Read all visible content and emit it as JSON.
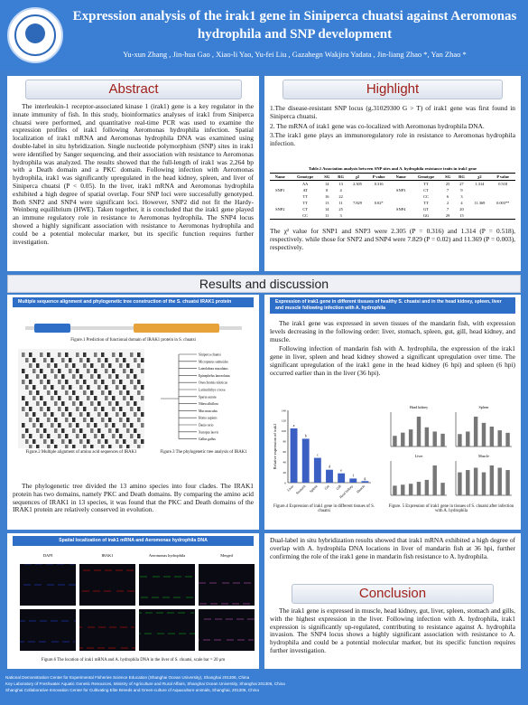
{
  "header": {
    "title": "Expression analysis of the irak1 gene in Siniperca chuatsi against Aeromonas hydrophila and SNP development",
    "authors": "Yu-xun Zhang , Jin-hua Gao , Xiao-li Yao, Yu-fei Liu , Gazahegn Wakjira Yadata , Jin-liang Zhao *, Yan Zhao *",
    "logo_text": "SHANGHAI OCEAN UNIVERSITY"
  },
  "abstract": {
    "heading": "Abstract",
    "text": "The interleukin-1 receptor-associated kinase 1 (irak1) gene is a key regulator in the innate immunity of fish. In this study, bioinformatics analyses of irak1 from Siniperca chuatsi were performed, and quantitative real-time PCR was used to examine the expression profiles of irak1 following Aeromonas hydrophila infection. Spatial localization of irak1 mRNA and Aeromonas hydrophila DNA was examined using double-label in situ hybridization. Single nucleotide polymorphism (SNP) sites in irak1 were identified by Sanger sequencing, and their association with resistance to Aeromonas hydrophila was analyzed. The results showed that the full-length of irak1 was 2,264 bp with a Death domain and a PKC domain. Following infection with Aeromonas hydrophila, irak1 was significantly upregulated in the head kidney, spleen, and liver of Siniperca chuatsi (P < 0.05). In the liver, irak1 mRNA and Aeromonas hydrophila exhibited a high degree of spatial overlap. Four SNP loci were successfully genotyped. Both SNP2 and SNP4 were significant loci. However, SNP2 did not fit the Hardy-Weinberg equilibrium (HWE). Taken together, it is concluded that the irak1 gene played an immune regulatory role in resistance to Aeromonas hydrophila. The SNP4 locus showed a highly significant association with resistance to Aeromonas hydrophila and could be a potential molecular marker, but its specific function requires further investigation."
  },
  "highlight": {
    "heading": "Highlight",
    "points": [
      "1.The disease-resistant SNP locus (g.31029300 G > T) of irak1 gene was first found in Siniperca chuatsi.",
      "2. The mRNA of irak1 gene was co-localized with Aeromonas hydrophila DNA.",
      "3.The irak1 gene plays an immunoregulatory role in resistance to Aeromonas hydrophila infection."
    ],
    "table_title": "Table.1 Association analysis between SNP sites and A. hydrophila resistance traits in irak1 gene",
    "table_headers": [
      "Name",
      "Genotype",
      "SG",
      "RG",
      "χ2",
      "P value",
      "Name",
      "Genotype",
      "SG",
      "RG",
      "χ2",
      "P value"
    ],
    "table_rows": [
      [
        "",
        "AA",
        "14",
        "13",
        "2.305",
        "0.316",
        "",
        "TT",
        "25",
        "27",
        "1.314",
        "0.518"
      ],
      [
        "SNP1",
        "AT",
        "8",
        "4",
        "",
        "",
        "SNP3",
        "CT",
        "7",
        "9",
        "",
        ""
      ],
      [
        "",
        "TT",
        "16",
        "22",
        "",
        "",
        "",
        "CC",
        "6",
        "3",
        "",
        ""
      ],
      [
        "",
        "TT",
        "13",
        "11",
        "7.829",
        "0.02*",
        "",
        "TT",
        "2",
        "4",
        "11.369",
        "0.003**"
      ],
      [
        "SNP2",
        "CT",
        "14",
        "25",
        "",
        "",
        "SNP4",
        "GT",
        "7",
        "20",
        "",
        ""
      ],
      [
        "",
        "CC",
        "11",
        "3",
        "",
        "",
        "",
        "GG",
        "29",
        "15",
        "",
        ""
      ]
    ],
    "summary": "The χ² value for SNP1 and SNP3 were 2.305 (P = 0.316) and 1.314 (P = 0.518), respectively. while those for SNP2 and SNP4 were 7.829 (P = 0.02) and 11.369 (P = 0.003), respectively."
  },
  "results": {
    "heading": "Results and discussion",
    "left_head": "Multiple sequence alignment and phylogenetic tree construction of the S. chuatsi IRAK1 protein",
    "fig1_caption": "Figure.1 Prediction of functional domain of IRAK1 protein in S. chuatsi",
    "fig2_caption": "Figure.2 Multiple alignment of amino acid sequences of IRAK1",
    "fig3_caption": "Figure.3 The phylogenetic tree analysis of IRAK1",
    "tree_species": [
      "Siniperca chuatsi",
      "Micropterus salmoides",
      "Lateolabrax maculatus",
      "Epinephelus lanceolatus",
      "Oreochromis niloticus",
      "Larimichthys crocea",
      "Sparus aurata",
      "Nibea albiflora",
      "Mus musculus",
      "Homo sapiens",
      "Danio rerio",
      "Xenopus laevis",
      "Gallus gallus"
    ],
    "left_text": "The phylogenetic tree divided the 13 amino species into four clades. The IRAK1 protein has two domains, namely PKC and Death domains. By comparing the amino acid sequences of IRAK1 in 13 species, it was found that the PKC and Death domains of the IRAK1 protein are relatively conserved in evolution.",
    "right_head": "Expression of irak1 gene in different tissues of healthy S. chuatsi and in the head kidney, spleen, liver and muscle following infection with A. hydrophila",
    "right_text1": "The irak1 gene was expressed in seven tissues of the mandarin fish, with expression levels decreasing in the following order: liver, stomach, spleen, gut, gill, head kidney, and muscle.",
    "right_text2": "Following infection of mandarin fish with A. hydrophila, the expression of the irak1 gene in liver, spleen and head kidney showed a significant upregulation over time. The significant upregulation of the irak1 gene in the head kidney (6 hpi) and spleen (6 hpi) occurred earlier than in the liver (36 hpi).",
    "fig4_caption": "Figure.4 Expression of irak1 gene in different tissues of S. chuatsi",
    "fig5_caption": "Figure. 5 Expression of irak1 gene in tissues of S. chuatsi after infection with A. hydrophila",
    "spatial_head": "Spatial localization of irak1 mRNA and Aeromonas hydrophila DNA",
    "fish_cols": [
      "DAPI",
      "IRAK1",
      "Aeromonas hydrophila",
      "Merged"
    ],
    "fig6_caption": "Figure.6 The location of irak1 mRNA and A. hydrophila DNA in the liver of S. chuatsi, scale bar = 20 μm",
    "spatial_text": "Dual-label in situ hybridization results showed that irak1 mRNA exhibited a high degree of overlap with A. hydrophila DNA locations in liver of mandarin fish at 36 hpi, further confirming the role of the irak1 gene in mandarin fish resistance to A. hydrophila."
  },
  "conclusion": {
    "heading": "Conclusion",
    "text": "The irak1 gene is expressed in muscle, head kidney, gut, liver, spleen, stomach and gills, with the highest expression in the liver. Following infection with A. hydrophila, irak1 expression is significantly up-regulated, contributing to resistance against A. hydrophila invasion. The SNP4 locus shows a highly significant association with resistance to A. hydrophila and could be a potential molecular marker, but its specific function requires further investigation."
  },
  "chart_data": [
    {
      "type": "bar",
      "title": "",
      "xlabel": "",
      "ylabel": "Relative expression of irak1",
      "categories": [
        "Liver",
        "Stomach",
        "Spleen",
        "Gut",
        "Gill",
        "Head kidney",
        "Muscle"
      ],
      "values": [
        105,
        85,
        48,
        25,
        18,
        8,
        3
      ],
      "ylim": [
        0,
        140
      ],
      "letters": [
        "a",
        "b",
        "c",
        "d",
        "e",
        "f",
        "g"
      ]
    }
  ],
  "mini_charts": [
    {
      "title": "Head kidney",
      "values": [
        1,
        1.3,
        1.6,
        2.8,
        1.8,
        1.4,
        1.2
      ]
    },
    {
      "title": "Spleen",
      "values": [
        1,
        1.2,
        2.4,
        1.9,
        1.6,
        1.3,
        1.1
      ]
    },
    {
      "title": "Liver",
      "values": [
        1,
        1.1,
        1.2,
        1.4,
        1.6,
        3.1,
        1.3
      ]
    },
    {
      "title": "Muscle",
      "values": [
        1,
        1.1,
        1.2,
        1.0,
        1.3,
        1.2,
        1.1
      ]
    }
  ],
  "footer": {
    "lines": [
      "National Demonstration Center for Experimental Fisheries Science Education (Shanghai Ocean University), Shanghai 201306, China",
      "Key Laboratory of Freshwater Aquatic Genetic Resources, Ministry of Agriculture and Rural Affairs, Shanghai Ocean University, Shanghai 201306, China",
      "Shanghai Collaborative Innovation Center for Cultivating Elite Breeds and Green-culture of Aquaculture animals, Shanghai, 201306, China"
    ]
  },
  "colors": {
    "header": "#3a7fd4",
    "accent": "#a0201a",
    "bar": "#3b5fc2"
  }
}
